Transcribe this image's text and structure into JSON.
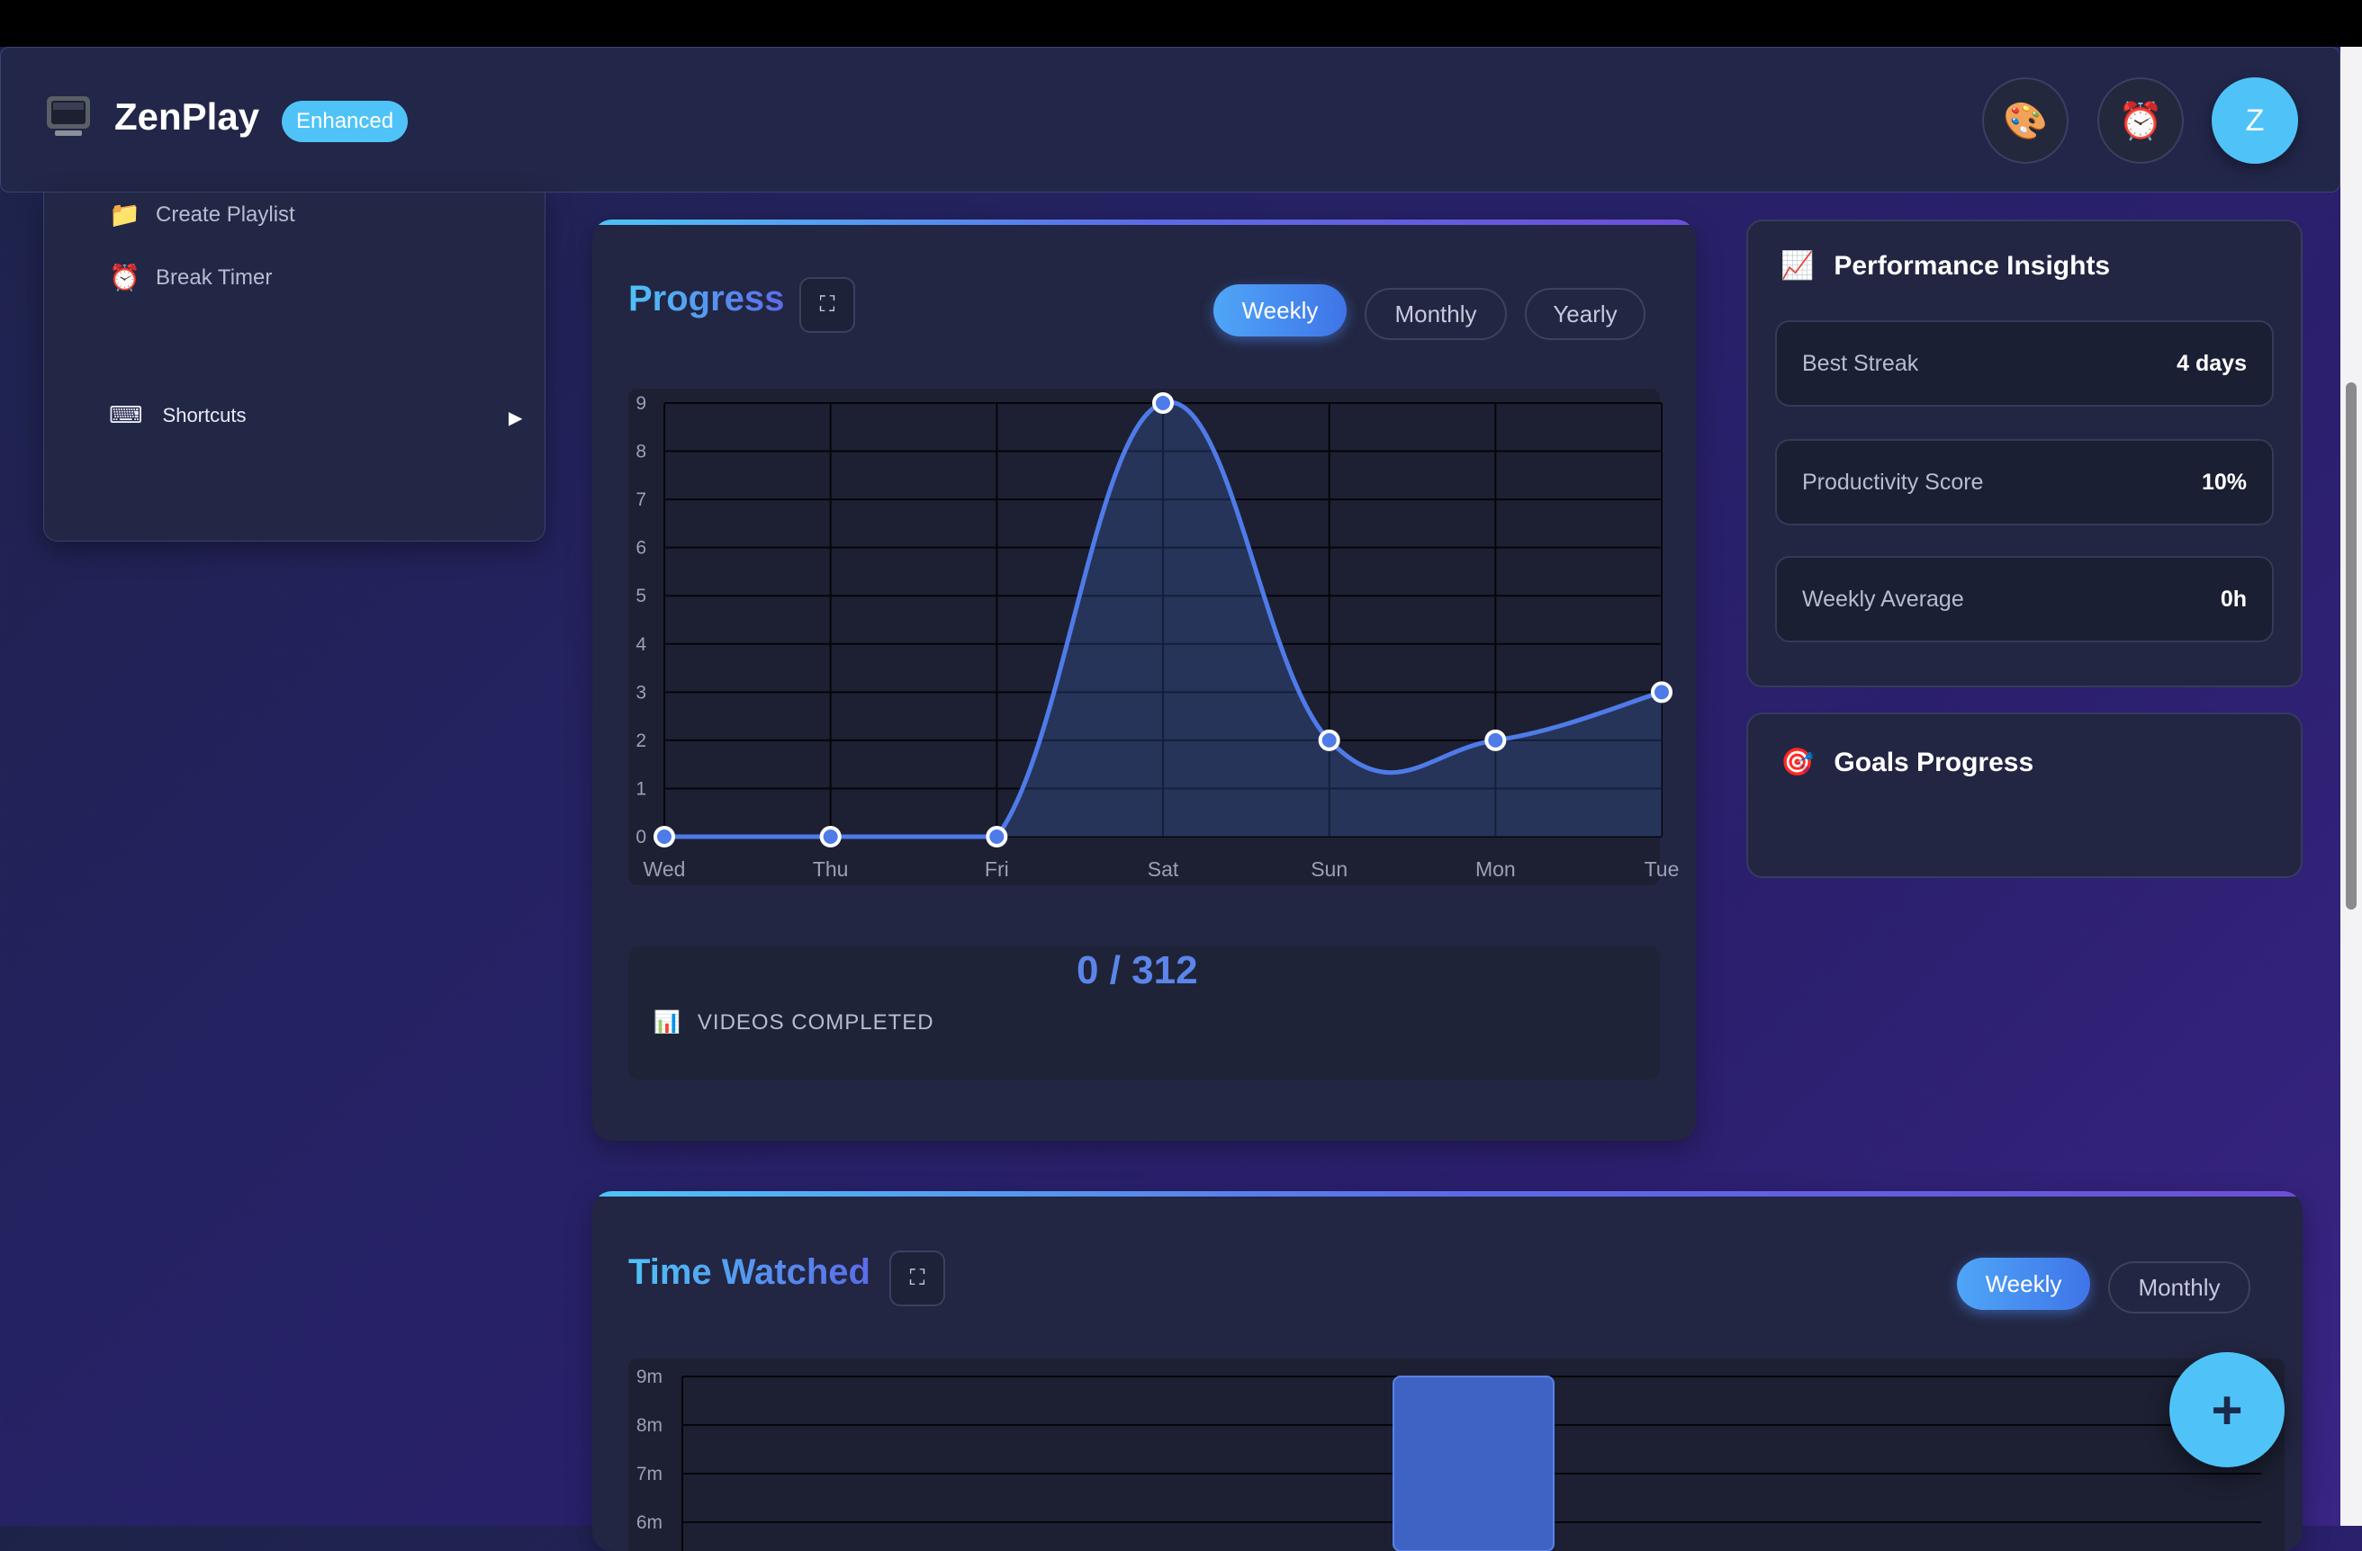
{
  "app": {
    "name": "ZenPlay",
    "badge": "Enhanced"
  },
  "header": {
    "buttons": [
      {
        "name": "palette-icon",
        "glyph": "🎨"
      },
      {
        "name": "alarm-clock-icon",
        "glyph": "⏰"
      }
    ],
    "avatar_letter": "Z"
  },
  "sidebar": {
    "items": [
      {
        "icon": "📁",
        "label": "Create Playlist"
      },
      {
        "icon": "⏰",
        "label": "Break Timer"
      }
    ],
    "shortcuts": {
      "icon": "⌨",
      "label": "Shortcuts",
      "arrow": "▶"
    }
  },
  "progress": {
    "title": "Progress",
    "tabs": [
      "Weekly",
      "Monthly",
      "Yearly"
    ],
    "active_tab": "Weekly",
    "stats_value": "0 / 312",
    "stats_icon": "📊",
    "stats_label": "VIDEOS COMPLETED"
  },
  "insights": {
    "title": "Performance Insights",
    "icon": "📈",
    "rows": [
      {
        "label": "Best Streak",
        "value": "4 days"
      },
      {
        "label": "Productivity Score",
        "value": "10%"
      },
      {
        "label": "Weekly Average",
        "value": "0h"
      }
    ]
  },
  "goals": {
    "title": "Goals Progress",
    "icon": "🎯"
  },
  "time_watched": {
    "title": "Time Watched",
    "tabs": [
      "Weekly",
      "Monthly"
    ],
    "active_tab": "Weekly"
  },
  "fab_label": "+",
  "colors": {
    "accent": "#4fc3f7",
    "line": "#4f7be8",
    "bar": "#3f63c4"
  },
  "chart_data": [
    {
      "type": "line",
      "categories": [
        "Wed",
        "Thu",
        "Fri",
        "Sat",
        "Sun",
        "Mon",
        "Tue"
      ],
      "values": [
        0,
        0,
        0,
        9,
        2,
        2,
        3
      ],
      "ylim": [
        0,
        9
      ],
      "yticks": [
        "0",
        "1",
        "2",
        "3",
        "4",
        "5",
        "6",
        "7",
        "8",
        "9"
      ],
      "grid": true
    },
    {
      "type": "bar",
      "yticks": [
        "9m",
        "8m",
        "7m",
        "6m"
      ],
      "visible_bar_value_minutes": 9,
      "grid": true
    }
  ]
}
